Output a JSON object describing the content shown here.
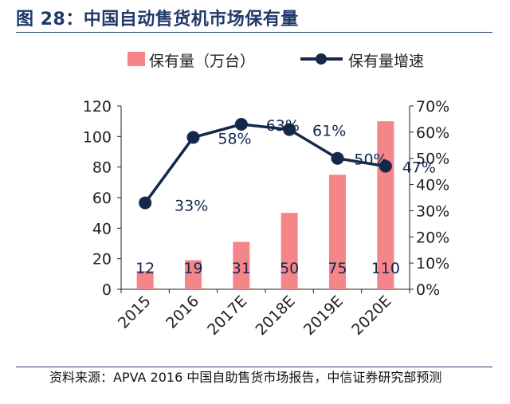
{
  "header": {
    "title": "图 28：中国自动售货机市场保有量"
  },
  "footer": {
    "source": "资料来源：APVA 2016 中国自助售货市场报告，中信证券研究部预测"
  },
  "colors": {
    "bar": "#f4868a",
    "line": "#14284b",
    "title": "#1f3a68",
    "axis": "#222222"
  },
  "chart_data": {
    "type": "bar",
    "categories": [
      "2015",
      "2016",
      "2017E",
      "2018E",
      "2019E",
      "2020E"
    ],
    "series": [
      {
        "name": "保有量（万台）",
        "type": "bar",
        "axis": "left",
        "values": [
          12,
          19,
          31,
          50,
          75,
          110
        ],
        "labels": [
          "12",
          "19",
          "31",
          "50",
          "75",
          "110"
        ]
      },
      {
        "name": "保有量增速",
        "type": "line",
        "axis": "right",
        "values": [
          33,
          58,
          63,
          61,
          50,
          47
        ],
        "labels": [
          "33%",
          "58%",
          "63%",
          "61%",
          "50%",
          "47%"
        ]
      }
    ],
    "y_left": {
      "min": 0,
      "max": 120,
      "ticks": [
        "0",
        "20",
        "40",
        "60",
        "80",
        "100",
        "120"
      ]
    },
    "y_right": {
      "min": 0,
      "max": 70,
      "ticks": [
        "0%",
        "10%",
        "20%",
        "30%",
        "40%",
        "50%",
        "60%",
        "70%"
      ]
    },
    "legend": "top",
    "grid": false
  }
}
